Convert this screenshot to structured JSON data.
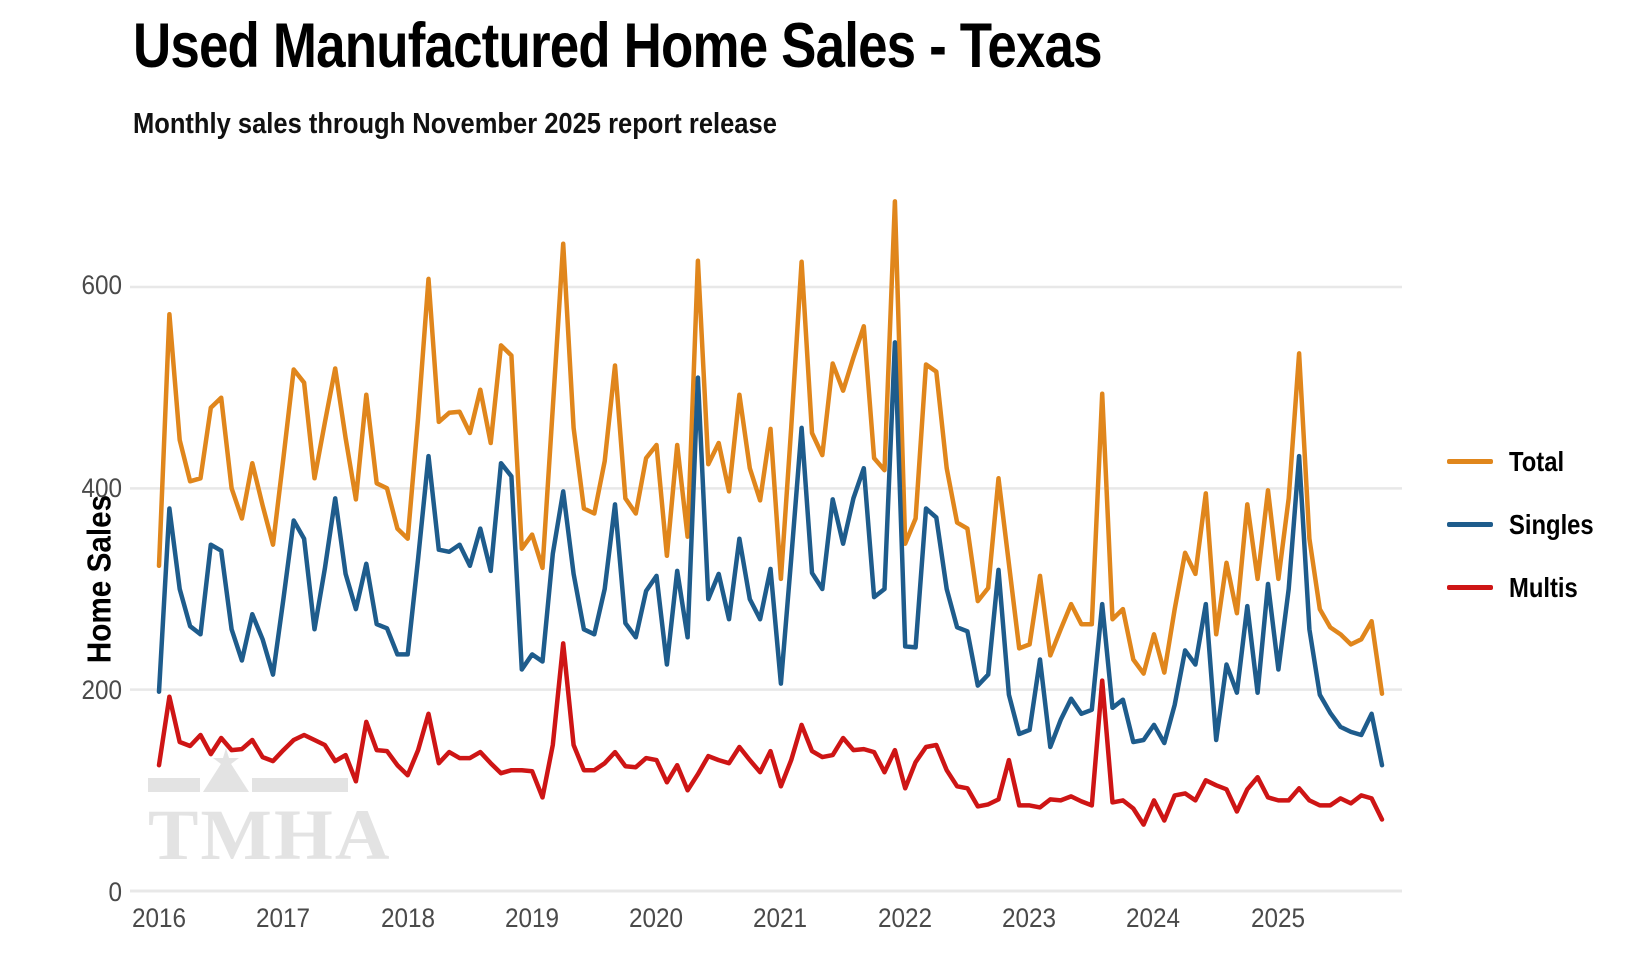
{
  "header": {
    "title": "Used Manufactured Home Sales - Texas",
    "subtitle": "Monthly sales through November 2025 report release"
  },
  "watermark": {
    "text": "TMHA"
  },
  "axes": {
    "y": {
      "label": "Home Sales",
      "ticks": [
        "0",
        "200",
        "400",
        "600"
      ]
    },
    "x": {
      "ticks": [
        "2016",
        "2017",
        "2018",
        "2019",
        "2020",
        "2021",
        "2022",
        "2023",
        "2024",
        "2025"
      ]
    }
  },
  "legend": {
    "items": [
      {
        "label": "Total",
        "color": "#E0861C"
      },
      {
        "label": "Singles",
        "color": "#1E5C8C"
      },
      {
        "label": "Multis",
        "color": "#CE1515"
      }
    ]
  },
  "colors": {
    "grid": "#e8e8e8",
    "tick_text": "#4a4a4a",
    "title_text": "#000000"
  },
  "chart_data": {
    "type": "line",
    "title": "Used Manufactured Home Sales - Texas",
    "subtitle": "Monthly sales through November 2025 report release",
    "xlabel": "",
    "ylabel": "Home Sales",
    "ylim": [
      0,
      700
    ],
    "y_gridlines": [
      0,
      200,
      400,
      600
    ],
    "legend_position": "right",
    "x_start": "2016-01",
    "x_end": "2025-11",
    "x_tick_years": [
      2016,
      2017,
      2018,
      2019,
      2020,
      2021,
      2022,
      2023,
      2024,
      2025
    ],
    "series": [
      {
        "name": "Total",
        "color": "#E0861C",
        "values": [
          323,
          573,
          448,
          407,
          410,
          480,
          490,
          400,
          370,
          425,
          383,
          344,
          430,
          518,
          505,
          410,
          465,
          519,
          450,
          389,
          493,
          405,
          400,
          360,
          350,
          470,
          608,
          466,
          475,
          476,
          455,
          498,
          445,
          542,
          532,
          340,
          354,
          321,
          480,
          643,
          460,
          380,
          375,
          427,
          522,
          390,
          375,
          430,
          443,
          333,
          443,
          352,
          626,
          424,
          445,
          397,
          493,
          420,
          388,
          459,
          310,
          460,
          625,
          455,
          433,
          524,
          497,
          530,
          561,
          430,
          418,
          685,
          345,
          370,
          523,
          516,
          420,
          366,
          360,
          288,
          301,
          410,
          325,
          241,
          245,
          313,
          234,
          260,
          285,
          265,
          265,
          494,
          270,
          280,
          230,
          216,
          255,
          217,
          280,
          336,
          315,
          395,
          255,
          326,
          276,
          384,
          310,
          398,
          310,
          390,
          534,
          350,
          280,
          262,
          255,
          245,
          250,
          268,
          196
        ]
      },
      {
        "name": "Singles",
        "color": "#1E5C8C",
        "values": [
          198,
          380,
          300,
          263,
          255,
          344,
          338,
          260,
          229,
          275,
          250,
          215,
          290,
          368,
          350,
          260,
          320,
          390,
          315,
          280,
          325,
          265,
          261,
          235,
          235,
          330,
          432,
          339,
          337,
          344,
          323,
          360,
          318,
          425,
          412,
          220,
          235,
          228,
          335,
          397,
          315,
          260,
          255,
          300,
          384,
          266,
          252,
          298,
          313,
          225,
          318,
          252,
          510,
          290,
          315,
          270,
          350,
          290,
          270,
          320,
          206,
          330,
          460,
          316,
          300,
          389,
          345,
          390,
          420,
          292,
          300,
          545,
          243,
          242,
          380,
          371,
          300,
          262,
          258,
          204,
          215,
          319,
          195,
          156,
          160,
          230,
          143,
          170,
          191,
          176,
          180,
          285,
          182,
          190,
          148,
          150,
          165,
          147,
          185,
          239,
          225,
          285,
          150,
          225,
          197,
          283,
          197,
          305,
          220,
          300,
          432,
          260,
          195,
          177,
          163,
          158,
          155,
          176,
          125
        ]
      },
      {
        "name": "Multis",
        "color": "#CE1515",
        "values": [
          125,
          193,
          148,
          144,
          155,
          136,
          152,
          140,
          141,
          150,
          133,
          129,
          140,
          150,
          155,
          150,
          145,
          129,
          135,
          109,
          168,
          140,
          139,
          125,
          115,
          140,
          176,
          127,
          138,
          132,
          132,
          138,
          127,
          117,
          120,
          120,
          119,
          93,
          145,
          246,
          145,
          120,
          120,
          127,
          138,
          124,
          123,
          132,
          130,
          108,
          125,
          100,
          116,
          134,
          130,
          127,
          143,
          130,
          118,
          139,
          104,
          130,
          165,
          139,
          133,
          135,
          152,
          140,
          141,
          138,
          118,
          140,
          102,
          128,
          143,
          145,
          120,
          104,
          102,
          84,
          86,
          91,
          130,
          85,
          85,
          83,
          91,
          90,
          94,
          89,
          85,
          209,
          88,
          90,
          82,
          66,
          90,
          70,
          95,
          97,
          90,
          110,
          105,
          101,
          79,
          101,
          113,
          93,
          90,
          90,
          102,
          90,
          85,
          85,
          92,
          87,
          95,
          92,
          71
        ]
      }
    ]
  }
}
